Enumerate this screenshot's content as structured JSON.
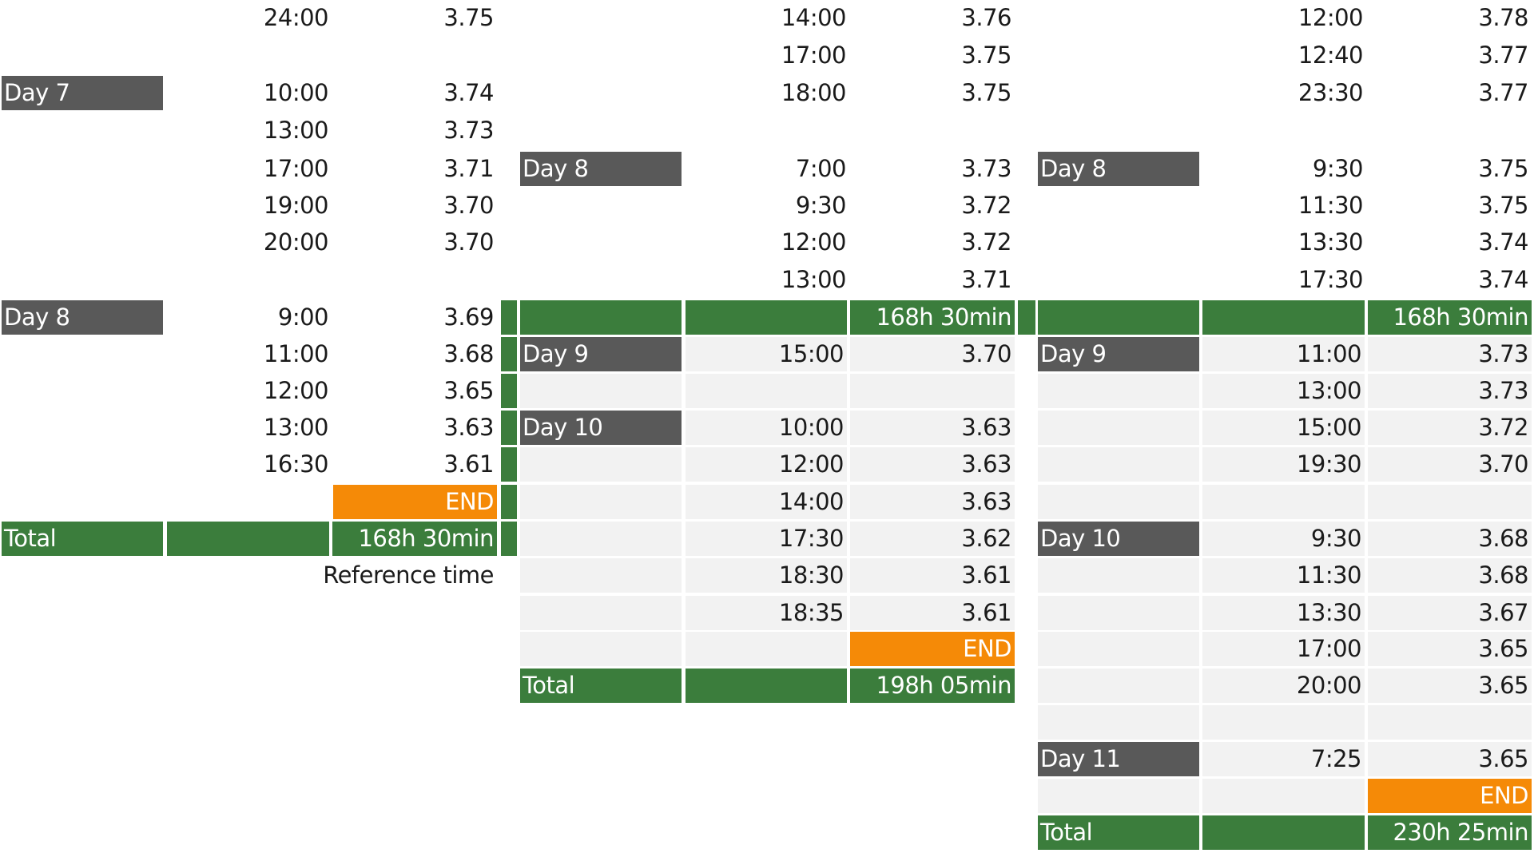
{
  "table1": {
    "rows": [
      {
        "time": "24:00",
        "value": "3.75"
      },
      {
        "day": "Day 7",
        "time": "10:00",
        "value": "3.74"
      },
      {
        "time": "13:00",
        "value": "3.73"
      },
      {
        "time": "17:00",
        "value": "3.71"
      },
      {
        "time": "19:00",
        "value": "3.70"
      },
      {
        "time": "20:00",
        "value": "3.70"
      },
      {
        "day": "Day 8",
        "time": "9:00",
        "value": "3.69"
      },
      {
        "time": "11:00",
        "value": "3.68"
      },
      {
        "time": "12:00",
        "value": "3.65"
      },
      {
        "time": "13:00",
        "value": "3.63"
      },
      {
        "time": "16:30",
        "value": "3.61"
      }
    ],
    "end_label": "END",
    "total_label": "Total",
    "total_value": "168h 30min",
    "reference_label": "Reference time"
  },
  "table2": {
    "rows_top": [
      {
        "time": "14:00",
        "value": "3.76"
      },
      {
        "time": "17:00",
        "value": "3.75"
      },
      {
        "time": "18:00",
        "value": "3.75"
      },
      {
        "day": "Day 8",
        "time": "7:00",
        "value": "3.73"
      },
      {
        "time": "9:30",
        "value": "3.72"
      },
      {
        "time": "12:00",
        "value": "3.72"
      },
      {
        "time": "13:00",
        "value": "3.71"
      }
    ],
    "reference_value": "168h 30min",
    "rows_bottom": [
      {
        "day": "Day 9",
        "time": "15:00",
        "value": "3.70"
      },
      {
        "day": "Day 10",
        "time": "10:00",
        "value": "3.63"
      },
      {
        "time": "12:00",
        "value": "3.63"
      },
      {
        "time": "14:00",
        "value": "3.63"
      },
      {
        "time": "17:30",
        "value": "3.62"
      },
      {
        "time": "18:30",
        "value": "3.61"
      },
      {
        "time": "18:35",
        "value": "3.61"
      }
    ],
    "end_label": "END",
    "total_label": "Total",
    "total_value": "198h 05min"
  },
  "table3": {
    "rows_top": [
      {
        "time": "12:00",
        "value": "3.78"
      },
      {
        "time": "12:40",
        "value": "3.77"
      },
      {
        "time": "23:30",
        "value": "3.77"
      },
      {
        "day": "Day 8",
        "time": "9:30",
        "value": "3.75"
      },
      {
        "time": "11:30",
        "value": "3.75"
      },
      {
        "time": "13:30",
        "value": "3.74"
      },
      {
        "time": "17:30",
        "value": "3.74"
      }
    ],
    "reference_value": "168h 30min",
    "rows_bottom": [
      {
        "day": "Day 9",
        "time": "11:00",
        "value": "3.73"
      },
      {
        "time": "13:00",
        "value": "3.73"
      },
      {
        "time": "15:00",
        "value": "3.72"
      },
      {
        "time": "19:30",
        "value": "3.70"
      },
      {
        "day": "Day 10",
        "time": "9:30",
        "value": "3.68"
      },
      {
        "time": "11:30",
        "value": "3.68"
      },
      {
        "time": "13:30",
        "value": "3.67"
      },
      {
        "time": "17:00",
        "value": "3.65"
      },
      {
        "time": "20:00",
        "value": "3.65"
      },
      {
        "day": "Day 11",
        "time": "7:25",
        "value": "3.65"
      }
    ],
    "end_label": "END",
    "total_label": "Total",
    "total_value": "230h 25min"
  },
  "colors": {
    "day_label": "#595959",
    "total_bar": "#3b7d3c",
    "end_marker": "#f58a07",
    "row_fill": "#f2f2f2"
  }
}
